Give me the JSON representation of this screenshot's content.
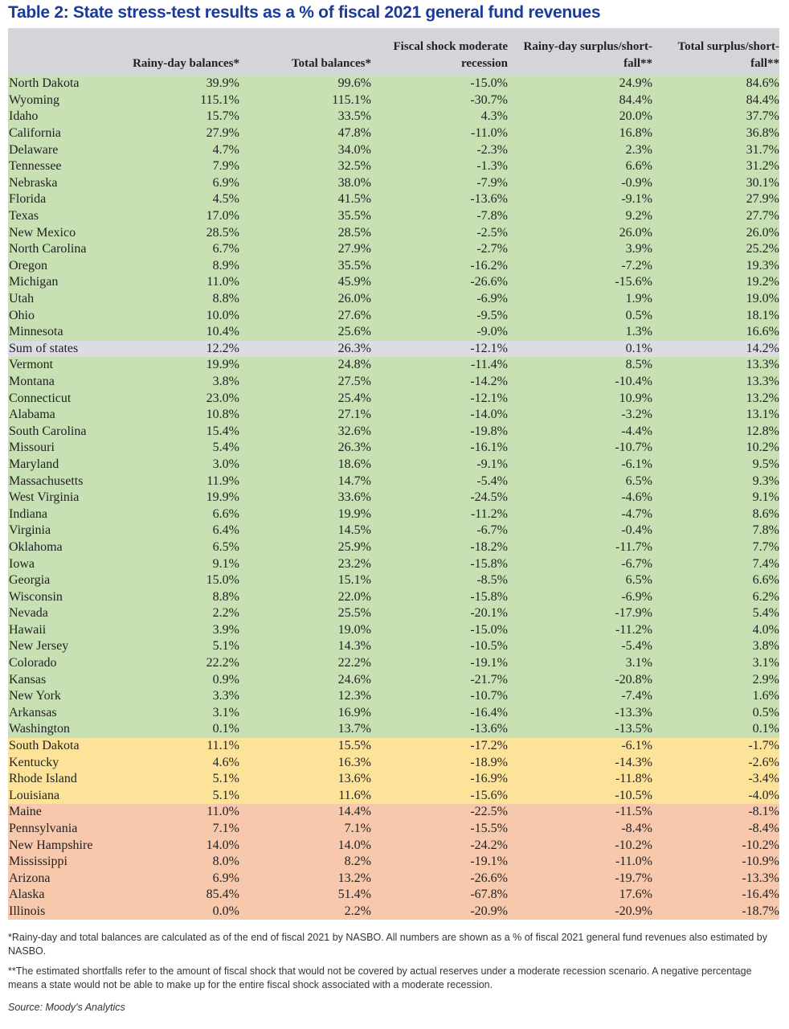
{
  "title": "Table 2: State stress-test results as a % of fiscal 2021 general fund revenues",
  "headers": [
    "",
    "Rainy-day balances*",
    "Total balances*",
    "Fiscal shock moderate recession",
    "Rainy-day surplus/short-fall**",
    "Total surplus/short-fall**"
  ],
  "colors": {
    "green": "#c7e1b5",
    "sum": "#dcdde3",
    "yellow": "#fde39a",
    "red": "#f7c8ac",
    "header": "#d3d5d9",
    "title": "#1a3a9c"
  },
  "rows": [
    [
      "green",
      "North Dakota",
      "39.9%",
      "99.6%",
      "-15.0%",
      "24.9%",
      "84.6%"
    ],
    [
      "green",
      "Wyoming",
      "115.1%",
      "115.1%",
      "-30.7%",
      "84.4%",
      "84.4%"
    ],
    [
      "green",
      "Idaho",
      "15.7%",
      "33.5%",
      "4.3%",
      "20.0%",
      "37.7%"
    ],
    [
      "green",
      "California",
      "27.9%",
      "47.8%",
      "-11.0%",
      "16.8%",
      "36.8%"
    ],
    [
      "green",
      "Delaware",
      "4.7%",
      "34.0%",
      "-2.3%",
      "2.3%",
      "31.7%"
    ],
    [
      "green",
      "Tennessee",
      "7.9%",
      "32.5%",
      "-1.3%",
      "6.6%",
      "31.2%"
    ],
    [
      "green",
      "Nebraska",
      "6.9%",
      "38.0%",
      "-7.9%",
      "-0.9%",
      "30.1%"
    ],
    [
      "green",
      "Florida",
      "4.5%",
      "41.5%",
      "-13.6%",
      "-9.1%",
      "27.9%"
    ],
    [
      "green",
      "Texas",
      "17.0%",
      "35.5%",
      "-7.8%",
      "9.2%",
      "27.7%"
    ],
    [
      "green",
      "New Mexico",
      "28.5%",
      "28.5%",
      "-2.5%",
      "26.0%",
      "26.0%"
    ],
    [
      "green",
      "North Carolina",
      "6.7%",
      "27.9%",
      "-2.7%",
      "3.9%",
      "25.2%"
    ],
    [
      "green",
      "Oregon",
      "8.9%",
      "35.5%",
      "-16.2%",
      "-7.2%",
      "19.3%"
    ],
    [
      "green",
      "Michigan",
      "11.0%",
      "45.9%",
      "-26.6%",
      "-15.6%",
      "19.2%"
    ],
    [
      "green",
      "Utah",
      "8.8%",
      "26.0%",
      "-6.9%",
      "1.9%",
      "19.0%"
    ],
    [
      "green",
      "Ohio",
      "10.0%",
      "27.6%",
      "-9.5%",
      "0.5%",
      "18.1%"
    ],
    [
      "green",
      "Minnesota",
      "10.4%",
      "25.6%",
      "-9.0%",
      "1.3%",
      "16.6%"
    ],
    [
      "sum",
      "Sum of states",
      "12.2%",
      "26.3%",
      "-12.1%",
      "0.1%",
      "14.2%"
    ],
    [
      "green",
      "Vermont",
      "19.9%",
      "24.8%",
      "-11.4%",
      "8.5%",
      "13.3%"
    ],
    [
      "green",
      "Montana",
      "3.8%",
      "27.5%",
      "-14.2%",
      "-10.4%",
      "13.3%"
    ],
    [
      "green",
      "Connecticut",
      "23.0%",
      "25.4%",
      "-12.1%",
      "10.9%",
      "13.2%"
    ],
    [
      "green",
      "Alabama",
      "10.8%",
      "27.1%",
      "-14.0%",
      "-3.2%",
      "13.1%"
    ],
    [
      "green",
      "South Carolina",
      "15.4%",
      "32.6%",
      "-19.8%",
      "-4.4%",
      "12.8%"
    ],
    [
      "green",
      "Missouri",
      "5.4%",
      "26.3%",
      "-16.1%",
      "-10.7%",
      "10.2%"
    ],
    [
      "green",
      "Maryland",
      "3.0%",
      "18.6%",
      "-9.1%",
      "-6.1%",
      "9.5%"
    ],
    [
      "green",
      "Massachusetts",
      "11.9%",
      "14.7%",
      "-5.4%",
      "6.5%",
      "9.3%"
    ],
    [
      "green",
      "West Virginia",
      "19.9%",
      "33.6%",
      "-24.5%",
      "-4.6%",
      "9.1%"
    ],
    [
      "green",
      "Indiana",
      "6.6%",
      "19.9%",
      "-11.2%",
      "-4.7%",
      "8.6%"
    ],
    [
      "green",
      "Virginia",
      "6.4%",
      "14.5%",
      "-6.7%",
      "-0.4%",
      "7.8%"
    ],
    [
      "green",
      "Oklahoma",
      "6.5%",
      "25.9%",
      "-18.2%",
      "-11.7%",
      "7.7%"
    ],
    [
      "green",
      "Iowa",
      "9.1%",
      "23.2%",
      "-15.8%",
      "-6.7%",
      "7.4%"
    ],
    [
      "green",
      "Georgia",
      "15.0%",
      "15.1%",
      "-8.5%",
      "6.5%",
      "6.6%"
    ],
    [
      "green",
      "Wisconsin",
      "8.8%",
      "22.0%",
      "-15.8%",
      "-6.9%",
      "6.2%"
    ],
    [
      "green",
      "Nevada",
      "2.2%",
      "25.5%",
      "-20.1%",
      "-17.9%",
      "5.4%"
    ],
    [
      "green",
      "Hawaii",
      "3.9%",
      "19.0%",
      "-15.0%",
      "-11.2%",
      "4.0%"
    ],
    [
      "green",
      "New Jersey",
      "5.1%",
      "14.3%",
      "-10.5%",
      "-5.4%",
      "3.8%"
    ],
    [
      "green",
      "Colorado",
      "22.2%",
      "22.2%",
      "-19.1%",
      "3.1%",
      "3.1%"
    ],
    [
      "green",
      "Kansas",
      "0.9%",
      "24.6%",
      "-21.7%",
      "-20.8%",
      "2.9%"
    ],
    [
      "green",
      "New York",
      "3.3%",
      "12.3%",
      "-10.7%",
      "-7.4%",
      "1.6%"
    ],
    [
      "green",
      "Arkansas",
      "3.1%",
      "16.9%",
      "-16.4%",
      "-13.3%",
      "0.5%"
    ],
    [
      "green",
      "Washington",
      "0.1%",
      "13.7%",
      "-13.6%",
      "-13.5%",
      "0.1%"
    ],
    [
      "yellow",
      "South Dakota",
      "11.1%",
      "15.5%",
      "-17.2%",
      "-6.1%",
      "-1.7%"
    ],
    [
      "yellow",
      "Kentucky",
      "4.6%",
      "16.3%",
      "-18.9%",
      "-14.3%",
      "-2.6%"
    ],
    [
      "yellow",
      "Rhode Island",
      "5.1%",
      "13.6%",
      "-16.9%",
      "-11.8%",
      "-3.4%"
    ],
    [
      "yellow",
      "Louisiana",
      "5.1%",
      "11.6%",
      "-15.6%",
      "-10.5%",
      "-4.0%"
    ],
    [
      "red",
      "Maine",
      "11.0%",
      "14.4%",
      "-22.5%",
      "-11.5%",
      "-8.1%"
    ],
    [
      "red",
      "Pennsylvania",
      "7.1%",
      "7.1%",
      "-15.5%",
      "-8.4%",
      "-8.4%"
    ],
    [
      "red",
      "New Hampshire",
      "14.0%",
      "14.0%",
      "-24.2%",
      "-10.2%",
      "-10.2%"
    ],
    [
      "red",
      "Mississippi",
      "8.0%",
      "8.2%",
      "-19.1%",
      "-11.0%",
      "-10.9%"
    ],
    [
      "red",
      "Arizona",
      "6.9%",
      "13.2%",
      "-26.6%",
      "-19.7%",
      "-13.3%"
    ],
    [
      "red",
      "Alaska",
      "85.4%",
      "51.4%",
      "-67.8%",
      "17.6%",
      "-16.4%"
    ],
    [
      "red",
      "Illinois",
      "0.0%",
      "2.2%",
      "-20.9%",
      "-20.9%",
      "-18.7%"
    ]
  ],
  "footnotes": [
    "*Rainy-day and total balances are calculated as of the end of fiscal 2021 by NASBO. All numbers are shown as a % of fiscal 2021 general fund revenues also estimated by NASBO.",
    "**The estimated shortfalls refer to the amount of fiscal shock that would not be covered by actual reserves under a moderate recession scenario. A negative percentage means a state would not be able to make up for the entire fiscal shock associated with a moderate recession."
  ],
  "source": "Source: Moody's Analytics"
}
